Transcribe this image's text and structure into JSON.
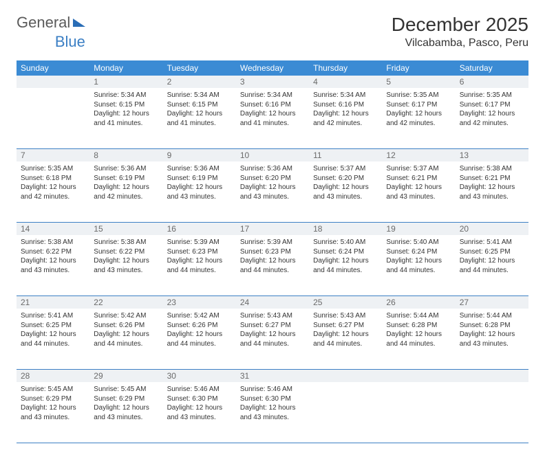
{
  "logo": {
    "text_gray": "General",
    "text_blue": "Blue"
  },
  "title": "December 2025",
  "location": "Vilcabamba, Pasco, Peru",
  "colors": {
    "header_bg": "#3b8bd4",
    "header_text": "#ffffff",
    "daynum_bg": "#eef1f4",
    "daynum_text": "#6a6a6a",
    "row_border": "#3b7fc4",
    "body_text": "#333333",
    "logo_gray": "#5a5a5a",
    "logo_blue": "#3b7fc4"
  },
  "typography": {
    "title_fontsize": 28,
    "location_fontsize": 16,
    "weekday_fontsize": 12,
    "daynum_fontsize": 12,
    "cell_fontsize": 10
  },
  "weekdays": [
    "Sunday",
    "Monday",
    "Tuesday",
    "Wednesday",
    "Thursday",
    "Friday",
    "Saturday"
  ],
  "days": {
    "1": {
      "sunrise": "5:34 AM",
      "sunset": "6:15 PM",
      "daylight": "12 hours and 41 minutes."
    },
    "2": {
      "sunrise": "5:34 AM",
      "sunset": "6:15 PM",
      "daylight": "12 hours and 41 minutes."
    },
    "3": {
      "sunrise": "5:34 AM",
      "sunset": "6:16 PM",
      "daylight": "12 hours and 41 minutes."
    },
    "4": {
      "sunrise": "5:34 AM",
      "sunset": "6:16 PM",
      "daylight": "12 hours and 42 minutes."
    },
    "5": {
      "sunrise": "5:35 AM",
      "sunset": "6:17 PM",
      "daylight": "12 hours and 42 minutes."
    },
    "6": {
      "sunrise": "5:35 AM",
      "sunset": "6:17 PM",
      "daylight": "12 hours and 42 minutes."
    },
    "7": {
      "sunrise": "5:35 AM",
      "sunset": "6:18 PM",
      "daylight": "12 hours and 42 minutes."
    },
    "8": {
      "sunrise": "5:36 AM",
      "sunset": "6:19 PM",
      "daylight": "12 hours and 42 minutes."
    },
    "9": {
      "sunrise": "5:36 AM",
      "sunset": "6:19 PM",
      "daylight": "12 hours and 43 minutes."
    },
    "10": {
      "sunrise": "5:36 AM",
      "sunset": "6:20 PM",
      "daylight": "12 hours and 43 minutes."
    },
    "11": {
      "sunrise": "5:37 AM",
      "sunset": "6:20 PM",
      "daylight": "12 hours and 43 minutes."
    },
    "12": {
      "sunrise": "5:37 AM",
      "sunset": "6:21 PM",
      "daylight": "12 hours and 43 minutes."
    },
    "13": {
      "sunrise": "5:38 AM",
      "sunset": "6:21 PM",
      "daylight": "12 hours and 43 minutes."
    },
    "14": {
      "sunrise": "5:38 AM",
      "sunset": "6:22 PM",
      "daylight": "12 hours and 43 minutes."
    },
    "15": {
      "sunrise": "5:38 AM",
      "sunset": "6:22 PM",
      "daylight": "12 hours and 43 minutes."
    },
    "16": {
      "sunrise": "5:39 AM",
      "sunset": "6:23 PM",
      "daylight": "12 hours and 44 minutes."
    },
    "17": {
      "sunrise": "5:39 AM",
      "sunset": "6:23 PM",
      "daylight": "12 hours and 44 minutes."
    },
    "18": {
      "sunrise": "5:40 AM",
      "sunset": "6:24 PM",
      "daylight": "12 hours and 44 minutes."
    },
    "19": {
      "sunrise": "5:40 AM",
      "sunset": "6:24 PM",
      "daylight": "12 hours and 44 minutes."
    },
    "20": {
      "sunrise": "5:41 AM",
      "sunset": "6:25 PM",
      "daylight": "12 hours and 44 minutes."
    },
    "21": {
      "sunrise": "5:41 AM",
      "sunset": "6:25 PM",
      "daylight": "12 hours and 44 minutes."
    },
    "22": {
      "sunrise": "5:42 AM",
      "sunset": "6:26 PM",
      "daylight": "12 hours and 44 minutes."
    },
    "23": {
      "sunrise": "5:42 AM",
      "sunset": "6:26 PM",
      "daylight": "12 hours and 44 minutes."
    },
    "24": {
      "sunrise": "5:43 AM",
      "sunset": "6:27 PM",
      "daylight": "12 hours and 44 minutes."
    },
    "25": {
      "sunrise": "5:43 AM",
      "sunset": "6:27 PM",
      "daylight": "12 hours and 44 minutes."
    },
    "26": {
      "sunrise": "5:44 AM",
      "sunset": "6:28 PM",
      "daylight": "12 hours and 44 minutes."
    },
    "27": {
      "sunrise": "5:44 AM",
      "sunset": "6:28 PM",
      "daylight": "12 hours and 43 minutes."
    },
    "28": {
      "sunrise": "5:45 AM",
      "sunset": "6:29 PM",
      "daylight": "12 hours and 43 minutes."
    },
    "29": {
      "sunrise": "5:45 AM",
      "sunset": "6:29 PM",
      "daylight": "12 hours and 43 minutes."
    },
    "30": {
      "sunrise": "5:46 AM",
      "sunset": "6:30 PM",
      "daylight": "12 hours and 43 minutes."
    },
    "31": {
      "sunrise": "5:46 AM",
      "sunset": "6:30 PM",
      "daylight": "12 hours and 43 minutes."
    }
  },
  "layout": {
    "first_weekday_index": 1,
    "num_days": 31,
    "columns": 7
  },
  "labels": {
    "sunrise_prefix": "Sunrise: ",
    "sunset_prefix": "Sunset: ",
    "daylight_prefix": "Daylight: "
  }
}
